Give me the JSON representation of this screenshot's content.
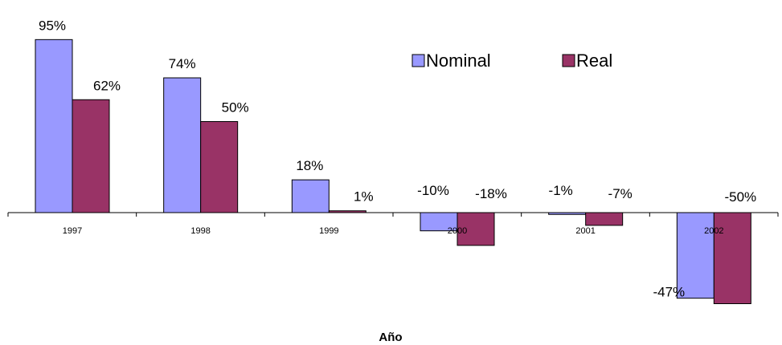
{
  "chart_data": {
    "type": "bar",
    "title": "",
    "xlabel": "Año",
    "ylabel": "",
    "categories": [
      "1997",
      "1998",
      "1999",
      "2000",
      "2001",
      "2002"
    ],
    "series": [
      {
        "name": "Nominal",
        "color": "#9999ff",
        "values": [
          95,
          74,
          18,
          -10,
          -1,
          -47
        ],
        "labels": [
          "95%",
          "74%",
          "18%",
          "-10%",
          "-1%",
          "-47%"
        ]
      },
      {
        "name": "Real",
        "color": "#993366",
        "values": [
          62,
          50,
          1,
          -18,
          -7,
          -50
        ],
        "labels": [
          "62%",
          "50%",
          "1%",
          "-18%",
          "-7%",
          "-50%"
        ]
      }
    ],
    "ylim": [
      -50,
      95
    ],
    "grid": false,
    "legend_position": "top-right"
  }
}
